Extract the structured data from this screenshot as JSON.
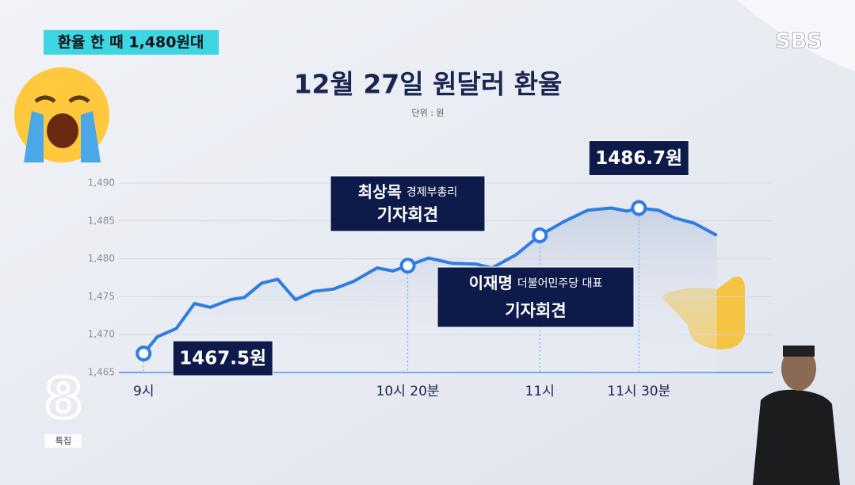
{
  "header": {
    "banner": "환율 한 때 1,480원대",
    "logo": "SBS",
    "program_logo": "8",
    "program_tag": "특집"
  },
  "chart_data": {
    "type": "line",
    "title": "12월 27일 원달러 환율",
    "subtitle": "단위 : 원",
    "x": [
      0,
      4.1,
      9.9,
      15.4,
      20.2,
      26.2,
      30.5,
      35.8,
      40.6,
      46,
      51.4,
      57.5,
      63.5,
      70.7,
      75.5,
      80,
      86.3,
      93.5,
      100.7,
      105.5,
      112.7,
      120,
      127.2,
      134.4,
      141.6,
      146.4,
      150,
      156,
      160.8,
      166.8,
      173.6
    ],
    "series": [
      {
        "name": "원달러 환율",
        "color": "#2f7de1",
        "values": [
          1467.5,
          1469.7,
          1470.8,
          1474.1,
          1473.6,
          1474.6,
          1474.9,
          1476.8,
          1477.3,
          1474.6,
          1475.7,
          1476.0,
          1477.0,
          1478.8,
          1478.4,
          1479.1,
          1480.1,
          1479.4,
          1479.3,
          1478.8,
          1480.5,
          1483.1,
          1484.9,
          1486.4,
          1486.7,
          1486.3,
          1486.7,
          1486.4,
          1485.4,
          1484.7,
          1483.1
        ],
        "value_labels": [
          "1467.5원",
          null,
          null,
          null,
          null,
          null,
          null,
          null,
          null,
          null,
          null,
          null,
          null,
          null,
          null,
          null,
          null,
          null,
          null,
          null,
          null,
          null,
          null,
          null,
          null,
          null,
          "1486.7원",
          null,
          null,
          null,
          null
        ]
      }
    ],
    "xlim": [
      -7.5,
      190.5
    ],
    "xticks": [
      {
        "value": 0,
        "label": "9시"
      },
      {
        "value": 80,
        "label": "10시 20분"
      },
      {
        "value": 120,
        "label": "11시"
      },
      {
        "value": 150,
        "label": "11시 30분"
      }
    ],
    "ylim": [
      1465,
      1490
    ],
    "yticks": [
      {
        "value": 1465,
        "label": "1,465"
      },
      {
        "value": 1470,
        "label": "1,470"
      },
      {
        "value": 1475,
        "label": "1,475"
      },
      {
        "value": 1480,
        "label": "1,480"
      },
      {
        "value": 1485,
        "label": "1,485"
      },
      {
        "value": 1490,
        "label": "1,490"
      }
    ],
    "grid": true,
    "annotations": [
      {
        "title": "최상목",
        "role": "경제부총리",
        "event": "기자회견"
      },
      {
        "title": "이재명",
        "role": "더불어민주당 대표",
        "event": "기자회견"
      }
    ]
  }
}
